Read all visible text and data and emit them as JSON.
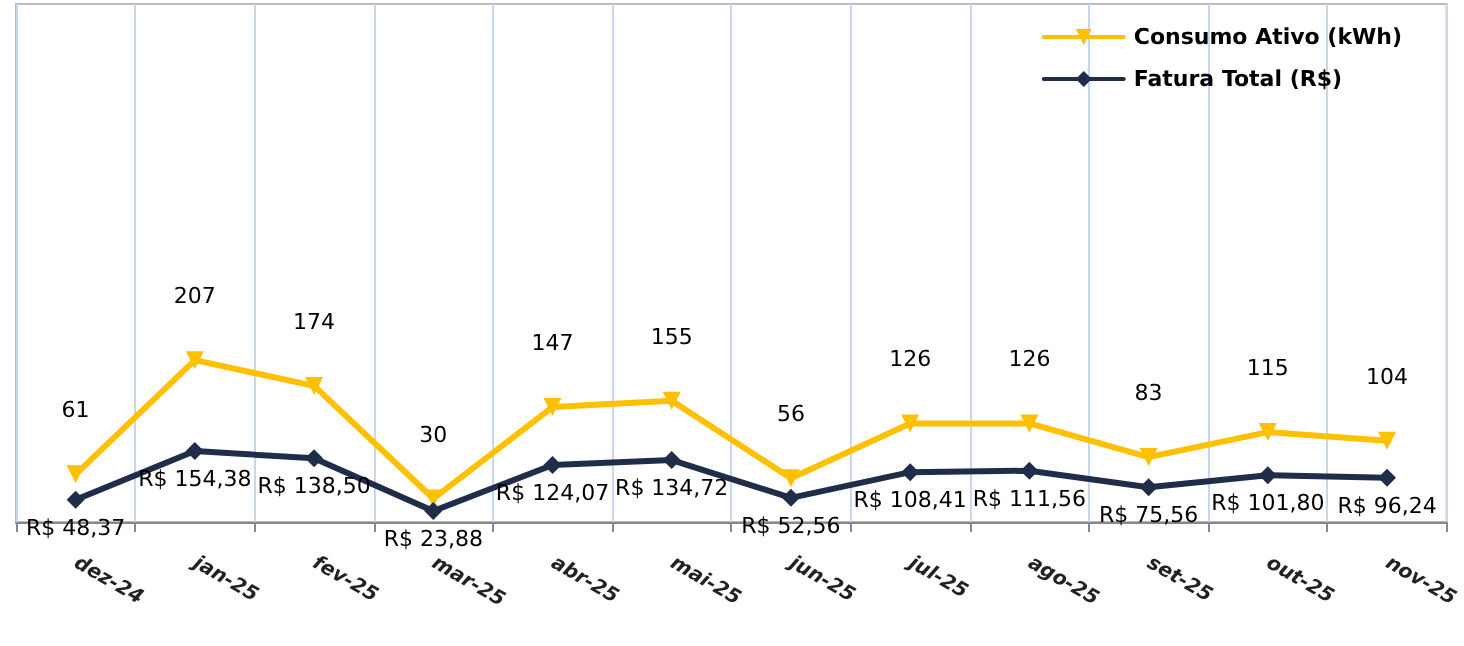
{
  "chart_data": {
    "type": "line",
    "categories": [
      "dez-24",
      "jan-25",
      "fev-25",
      "mar-25",
      "abr-25",
      "mai-25",
      "jun-25",
      "jul-25",
      "ago-25",
      "set-25",
      "out-25",
      "nov-25"
    ],
    "series": [
      {
        "name": "Consumo Ativo (kWh)",
        "color": "#ffc000",
        "marker": "triangle",
        "values": [
          61,
          207,
          174,
          30,
          147,
          155,
          56,
          126,
          126,
          83,
          115,
          104
        ],
        "value_labels": [
          "61",
          "207",
          "174",
          "30",
          "147",
          "155",
          "56",
          "126",
          "126",
          "83",
          "115",
          "104"
        ]
      },
      {
        "name": "Fatura Total (R$)",
        "color": "#1f2d48",
        "marker": "diamond",
        "axis": "y2",
        "values": [
          48.37,
          154.38,
          138.5,
          23.88,
          124.07,
          134.72,
          52.56,
          108.41,
          111.56,
          75.56,
          101.8,
          96.24
        ],
        "value_labels": [
          "R$ 48,37",
          "R$ 154,38",
          "R$ 138,50",
          "R$ 23,88",
          "R$ 124,07",
          "R$ 134,72",
          "R$ 52,56",
          "R$ 108,41",
          "R$ 111,56",
          "R$ 75,56",
          "R$ 101,80",
          "R$ 96,24"
        ]
      }
    ],
    "grid": "x",
    "legend": "top right"
  }
}
